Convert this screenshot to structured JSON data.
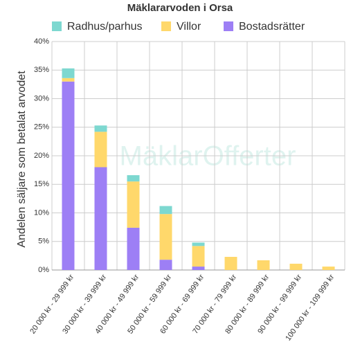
{
  "chart_data": {
    "type": "stacked-bar",
    "title": "Mäklararvoden i Orsa",
    "y_label": "Andelen säljare som betalat arvodet",
    "watermark": "MäklarOfferter",
    "categories": [
      "20 000 kr - 29 999 kr",
      "30 000 kr - 39 999 kr",
      "40 000 kr - 49 999 kr",
      "50 000 kr - 59 999 kr",
      "60 000 kr - 69 999 kr",
      "70 000 kr - 79 999 kr",
      "80 000 kr - 89 999 kr",
      "90 000 kr - 99 999 kr",
      "100 000 kr - 109 999 kr"
    ],
    "series": [
      {
        "name": "Radhus/parhus",
        "color": "#7dd8d0",
        "values": [
          1.7,
          1.1,
          1.1,
          1.4,
          0.6,
          0,
          0,
          0,
          0
        ]
      },
      {
        "name": "Villor",
        "color": "#ffd86b",
        "values": [
          0.6,
          6.2,
          8.1,
          8.0,
          3.6,
          2.3,
          1.7,
          1.1,
          0.6
        ]
      },
      {
        "name": "Bostadsrätter",
        "color": "#9d7ff5",
        "values": [
          33.0,
          18.0,
          7.4,
          1.8,
          0.6,
          0,
          0,
          0,
          0
        ]
      }
    ],
    "stack_order": [
      2,
      1,
      0
    ],
    "ylim": [
      0,
      40
    ],
    "yticks": [
      {
        "value": 0,
        "label": "0%"
      },
      {
        "value": 5,
        "label": "5%"
      },
      {
        "value": 10,
        "label": "10%"
      },
      {
        "value": 15,
        "label": "15%"
      },
      {
        "value": 20,
        "label": "20%"
      },
      {
        "value": 25,
        "label": "25%"
      },
      {
        "value": 30,
        "label": "30%"
      },
      {
        "value": 35,
        "label": "35%"
      },
      {
        "value": 40,
        "label": "40%"
      }
    ],
    "grid": true,
    "legend": "top"
  }
}
